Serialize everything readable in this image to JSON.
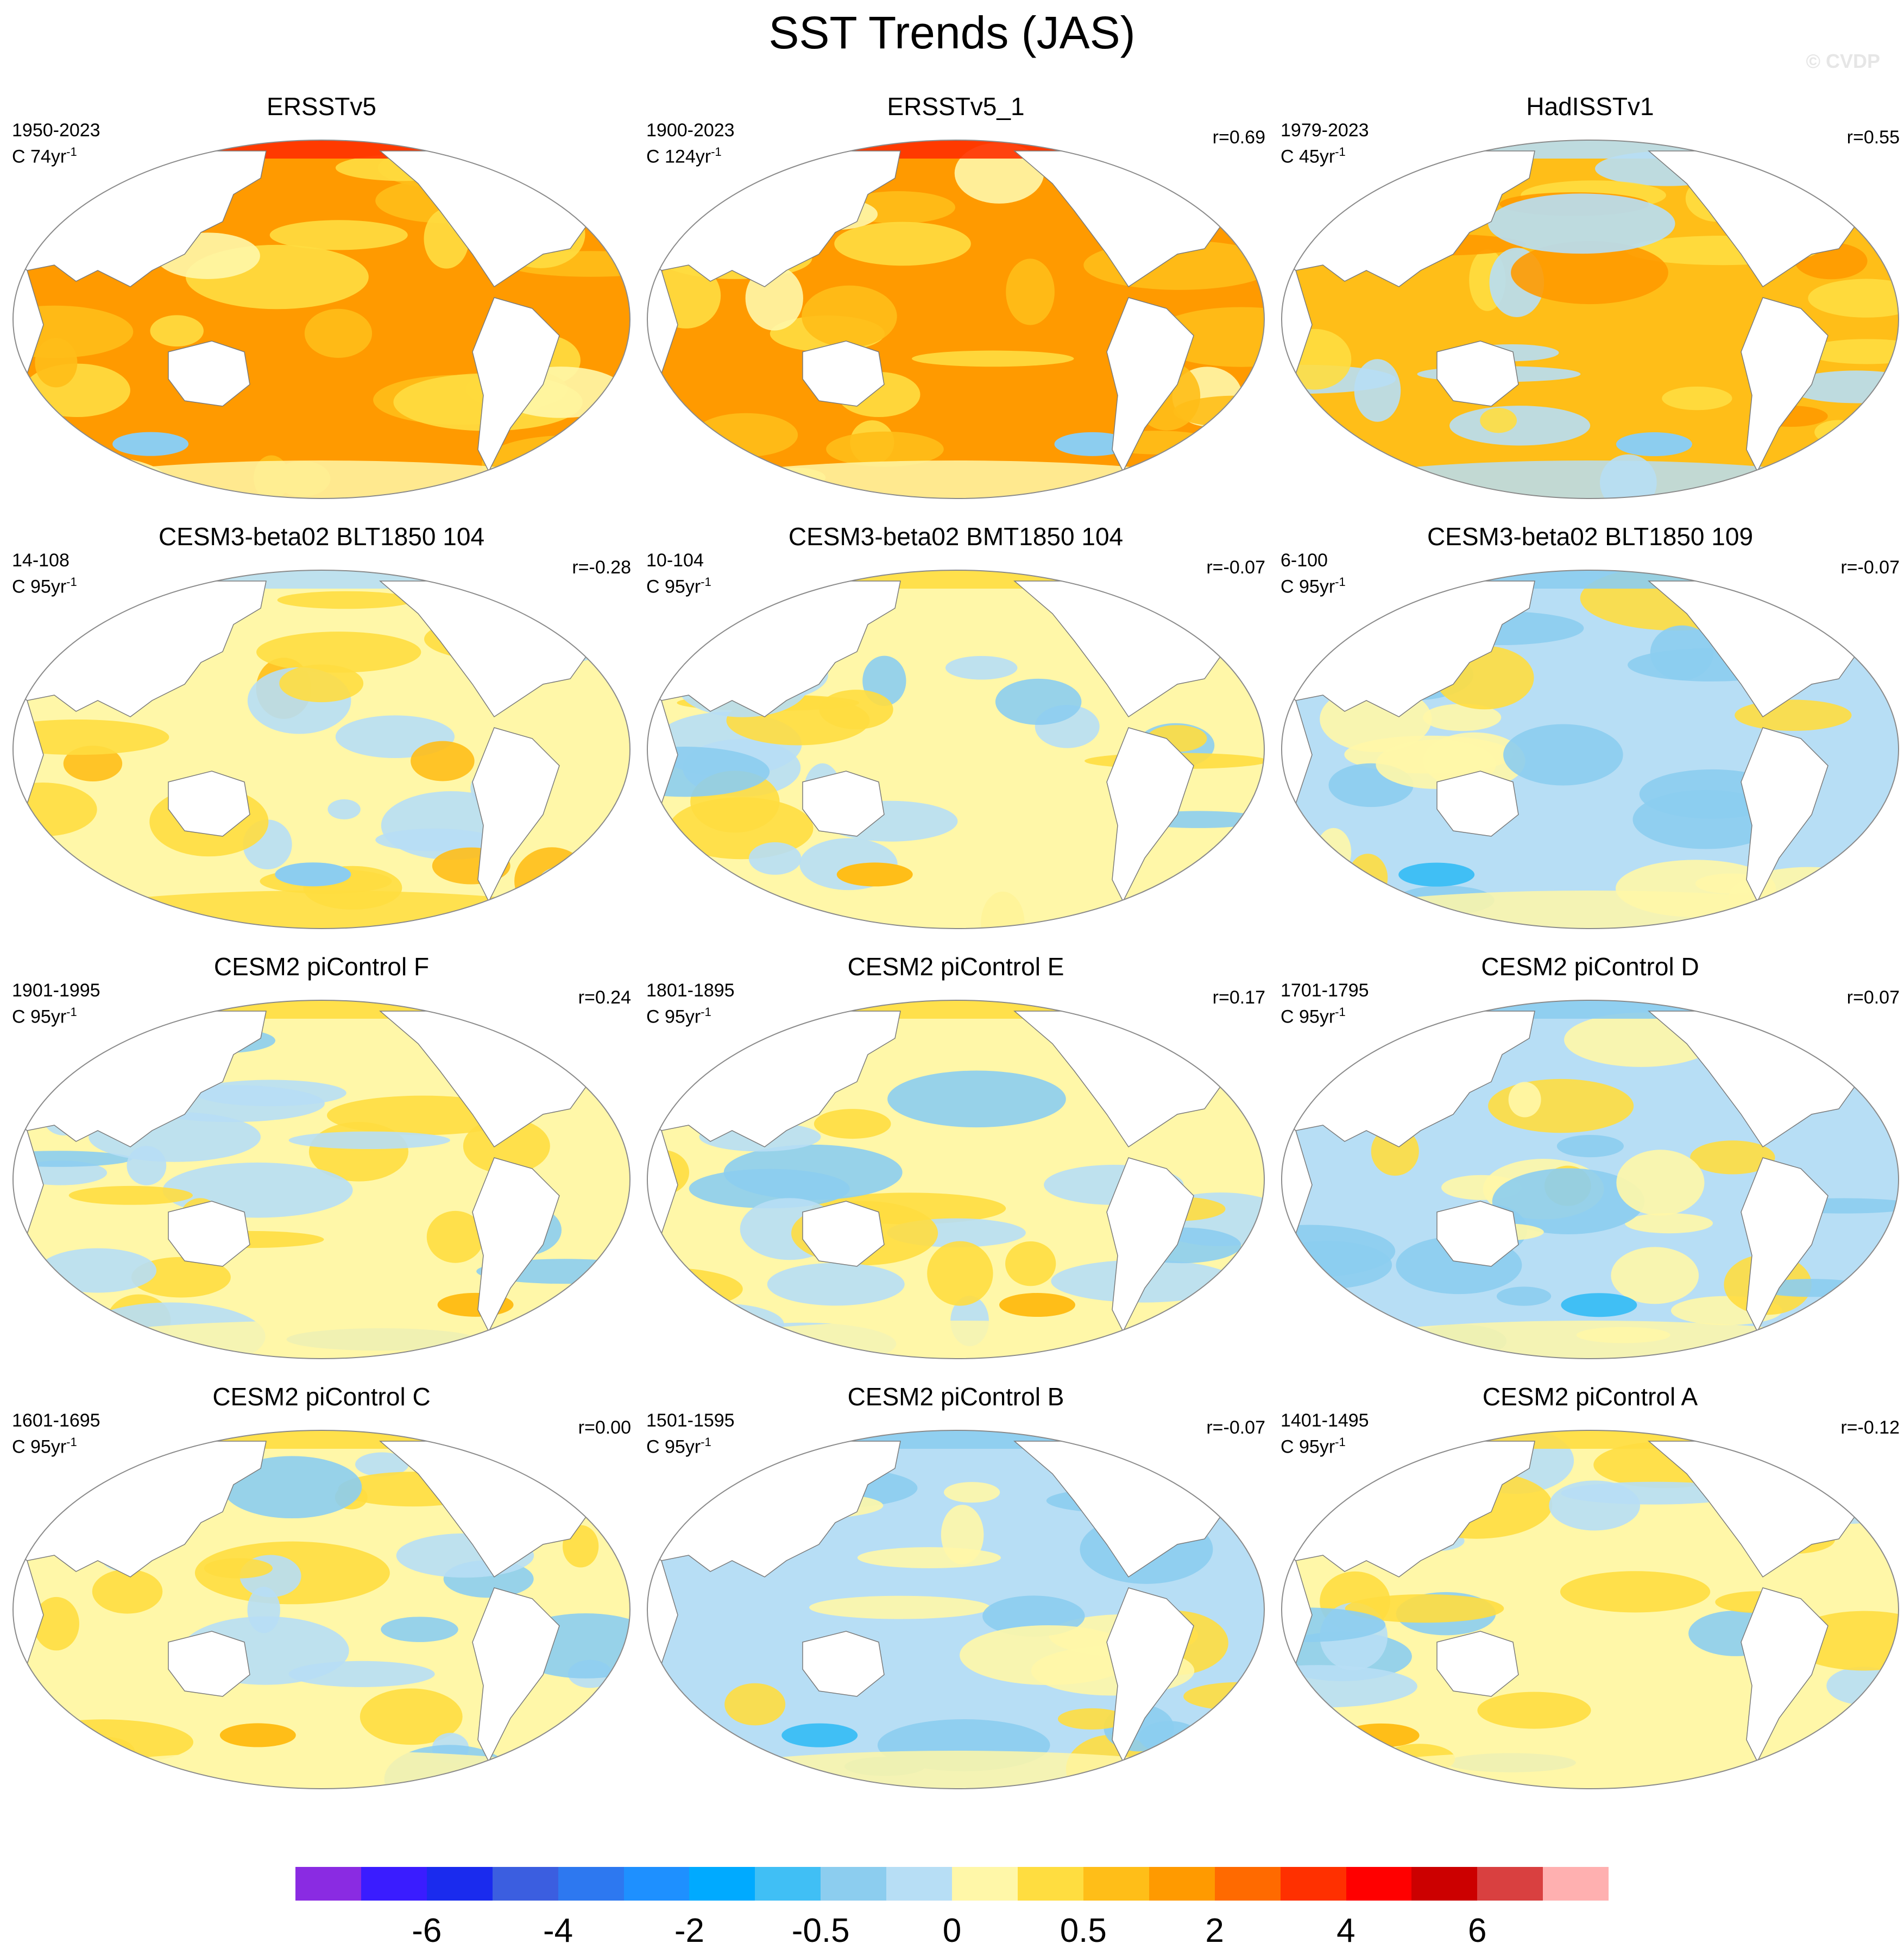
{
  "title": "SST Trends (JAS)",
  "watermark": "© CVDP",
  "panels": [
    {
      "title": "ERSSTv5",
      "period": "1950-2023",
      "units": "C 74yr",
      "unit_exp": "-1",
      "corr": "",
      "tint": "warm_strong"
    },
    {
      "title": "ERSSTv5_1",
      "period": "1900-2023",
      "units": "C 124yr",
      "unit_exp": "-1",
      "corr": "r=0.69",
      "tint": "warm_strong"
    },
    {
      "title": "HadISSTv1",
      "period": "1979-2023",
      "units": "C 45yr",
      "unit_exp": "-1",
      "corr": "r=0.55",
      "tint": "warm_mixed"
    },
    {
      "title": "CESM3-beta02 BLT1850 104",
      "period": "14-108",
      "units": "C 95yr",
      "unit_exp": "-1",
      "corr": "r=-0.28",
      "tint": "mixed_warm"
    },
    {
      "title": "CESM3-beta02 BMT1850 104",
      "period": "10-104",
      "units": "C 95yr",
      "unit_exp": "-1",
      "corr": "r=-0.07",
      "tint": "mixed"
    },
    {
      "title": "CESM3-beta02 BLT1850 109",
      "period": "6-100",
      "units": "C 95yr",
      "unit_exp": "-1",
      "corr": "r=-0.07",
      "tint": "mixed_cool"
    },
    {
      "title": "CESM2 piControl F",
      "period": "1901-1995",
      "units": "C 95yr",
      "unit_exp": "-1",
      "corr": "r=0.24",
      "tint": "mixed"
    },
    {
      "title": "CESM2 piControl E",
      "period": "1801-1895",
      "units": "C 95yr",
      "unit_exp": "-1",
      "corr": "r=0.17",
      "tint": "mixed"
    },
    {
      "title": "CESM2 piControl D",
      "period": "1701-1795",
      "units": "C 95yr",
      "unit_exp": "-1",
      "corr": "r=0.07",
      "tint": "mixed_cool"
    },
    {
      "title": "CESM2 piControl C",
      "period": "1601-1695",
      "units": "C 95yr",
      "unit_exp": "-1",
      "corr": "r=0.00",
      "tint": "mixed"
    },
    {
      "title": "CESM2 piControl B",
      "period": "1501-1595",
      "units": "C 95yr",
      "unit_exp": "-1",
      "corr": "r=-0.07",
      "tint": "mixed_cool"
    },
    {
      "title": "CESM2 piControl A",
      "period": "1401-1495",
      "units": "C 95yr",
      "unit_exp": "-1",
      "corr": "r=-0.12",
      "tint": "mixed"
    }
  ],
  "colorbar": {
    "colors": [
      "#8a2be2",
      "#3a1cff",
      "#1a2bee",
      "#3b5ee0",
      "#2d78f0",
      "#1e90ff",
      "#00aaff",
      "#40bff5",
      "#8ccdef",
      "#b7def5",
      "#fff7a8",
      "#ffdd40",
      "#ffbe18",
      "#ff9a00",
      "#ff6a00",
      "#ff3000",
      "#ff0000",
      "#cc0000",
      "#d94040",
      "#ffb0b0"
    ],
    "labels": [
      "-6",
      "-4",
      "-2",
      "-0.5",
      "0",
      "0.5",
      "2",
      "4",
      "6"
    ],
    "label_positions": [
      2,
      4,
      6,
      8,
      10,
      12,
      14,
      16,
      18
    ]
  },
  "palette": {
    "land": "#ffffff",
    "coast": "#7a7a7a",
    "strong_warm": "#ff9a00",
    "warm": "#ffbe18",
    "light_warm": "#ffdd40",
    "pale_warm": "#fff7a8",
    "pale_cool": "#b7def5",
    "cool": "#8ccdef",
    "strong_cool": "#40bff5",
    "hot": "#ff3000"
  }
}
